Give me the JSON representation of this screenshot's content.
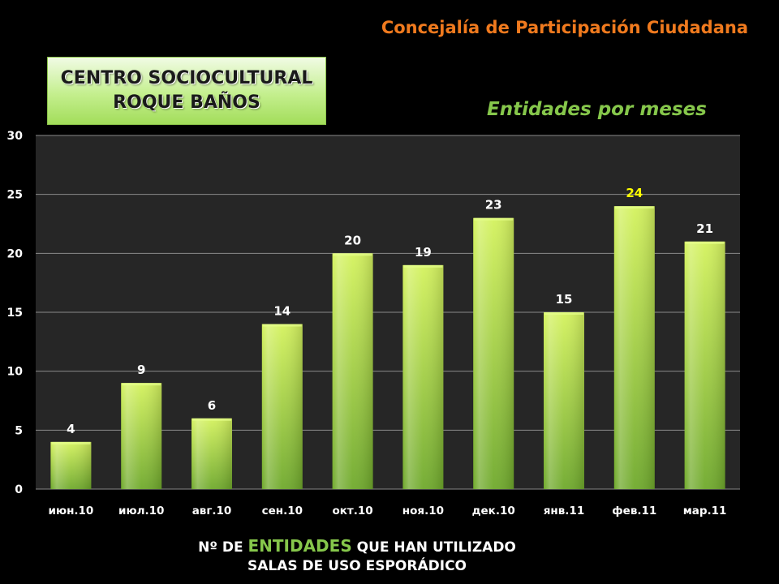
{
  "header": {
    "org": "Concejalía de Participación Ciudadana",
    "centro_line1": "CENTRO SOCIOCULTURAL",
    "centro_line2": "ROQUE BAÑOS"
  },
  "caption": {
    "line1_prefix": "Nº DE ",
    "line1_highlight": "ENTIDADES",
    "line1_suffix": " QUE HAN UTILIZADO",
    "line2": "SALAS DE USO ESPORÁDICO"
  },
  "colors": {
    "bar": "#a6d63a",
    "label": "#ffffff",
    "highlight_label": "#ffff00",
    "org": "#f07a1e",
    "accent_green": "#86c74b"
  },
  "chart_data": {
    "type": "bar",
    "title": "Entidades por meses",
    "categories": [
      "июн.10",
      "июл.10",
      "авг.10",
      "сен.10",
      "окт.10",
      "ноя.10",
      "дек.10",
      "янв.11",
      "фев.11",
      "мар.11"
    ],
    "values": [
      4,
      9,
      6,
      14,
      20,
      19,
      23,
      15,
      24,
      21
    ],
    "highlight_index": 8,
    "ylim": [
      0,
      30
    ],
    "yticks": [
      0,
      5,
      10,
      15,
      20,
      25,
      30
    ],
    "grid": true,
    "data_labels": true
  }
}
